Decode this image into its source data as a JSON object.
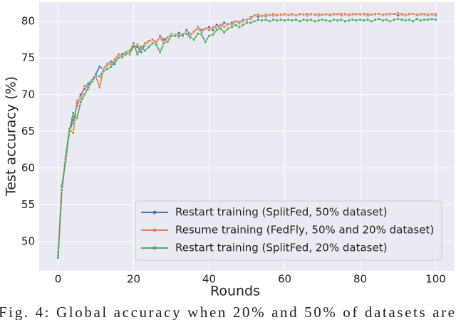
{
  "chart_data": {
    "type": "line",
    "xlabel": "Rounds",
    "ylabel": "Test accuracy (%)",
    "caption": "Fig. 4: Global accuracy when 20% and 50% of datasets are",
    "x": [
      0,
      1,
      2,
      3,
      4,
      5,
      6,
      7,
      8,
      9,
      10,
      11,
      12,
      13,
      14,
      15,
      16,
      17,
      18,
      19,
      20,
      21,
      22,
      23,
      24,
      25,
      26,
      27,
      28,
      29,
      30,
      31,
      32,
      33,
      34,
      35,
      36,
      37,
      38,
      39,
      40,
      41,
      42,
      43,
      44,
      45,
      46,
      47,
      48,
      49,
      50,
      51,
      52,
      53,
      54,
      55,
      56,
      57,
      58,
      59,
      60,
      61,
      62,
      63,
      64,
      65,
      66,
      67,
      68,
      69,
      70,
      71,
      72,
      73,
      74,
      75,
      76,
      77,
      78,
      79,
      80,
      81,
      82,
      83,
      84,
      85,
      86,
      87,
      88,
      89,
      90,
      91,
      92,
      93,
      94,
      95,
      96,
      97,
      98,
      99,
      100
    ],
    "series": [
      {
        "name": "Restart training (SplitFed, 50% dataset)",
        "color": "#4c72b0",
        "values": [
          48,
          57.5,
          61,
          65,
          66.5,
          68.5,
          70,
          70.8,
          71.5,
          72,
          72.8,
          73.8,
          73.5,
          74.2,
          74.5,
          74.2,
          75.2,
          75.5,
          75.8,
          76,
          76.5,
          76.5,
          75.8,
          76.8,
          77.2,
          77.5,
          77,
          78,
          77.5,
          77.8,
          78.2,
          78,
          78.4,
          78,
          78.8,
          78.2,
          78.5,
          79.2,
          78.8,
          79,
          79.2,
          78.8,
          79.5,
          79.2,
          79.8,
          79.5,
          79.8,
          80,
          79.9,
          80.2,
          80.2,
          80.5,
          80.8,
          80.6,
          80.8,
          80.7,
          80.9,
          80.8,
          80.9,
          80.8,
          80.9,
          80.8,
          80.9,
          80.8,
          80.9,
          81,
          80.8,
          80.9,
          80.9,
          80.8,
          80.9,
          80.9,
          80.8,
          80.9,
          80.9,
          81,
          80.9,
          80.8,
          80.9,
          80.9,
          81,
          80.9,
          80.8,
          80.9,
          80.9,
          81,
          80.8,
          80.9,
          80.9,
          81,
          80.8,
          80.9,
          80.8,
          80.9,
          81,
          80.8,
          80.9,
          80.9,
          80.8,
          80.9,
          80.8
        ]
      },
      {
        "name": "Resume training (FedFly, 50% and 20% dataset)",
        "color": "#dd8452",
        "values": [
          48.5,
          57,
          61.5,
          65.3,
          64.8,
          69.2,
          69.5,
          71.2,
          70.8,
          72,
          72.5,
          71,
          73.5,
          74,
          74.2,
          74.8,
          75.5,
          75,
          75.8,
          75.5,
          76.5,
          76.8,
          76.2,
          77,
          77.3,
          77.5,
          77.2,
          77.8,
          77,
          77.8,
          78,
          78.2,
          77.8,
          78.3,
          78.5,
          78,
          78.6,
          79,
          78.5,
          79,
          78.8,
          79.2,
          79,
          79.5,
          79.2,
          79.6,
          79.5,
          80,
          79.7,
          80,
          80.2,
          80.3,
          80.8,
          80.9,
          80.7,
          80.9,
          80.8,
          81,
          80.8,
          80.9,
          81,
          80.9,
          81,
          80.8,
          81,
          80.9,
          81,
          81,
          80.9,
          81,
          80.9,
          81,
          80.9,
          81,
          81,
          80.8,
          81,
          80.9,
          81,
          81,
          80.9,
          81,
          81,
          80.9,
          81,
          81,
          80.9,
          81,
          81,
          81,
          81.1,
          81,
          80.9,
          81,
          81,
          80.9,
          81,
          81,
          80.9,
          81,
          81
        ]
      },
      {
        "name": "Restart training (SplitFed, 20% dataset)",
        "color": "#55a868",
        "values": [
          47.8,
          57,
          61.2,
          65,
          67.5,
          66.8,
          69,
          70,
          71,
          71.8,
          72.5,
          72.5,
          73.2,
          73.5,
          73.8,
          74.5,
          75,
          75.2,
          75.5,
          75.8,
          77,
          75.5,
          76.5,
          76,
          76.5,
          77,
          76.8,
          75.8,
          77,
          77.2,
          78,
          78,
          78,
          78.2,
          78.3,
          77.8,
          77.5,
          78.3,
          78.2,
          77.2,
          78,
          78.2,
          78.8,
          79,
          78.5,
          79,
          79.2,
          79.5,
          79.2,
          79.5,
          79.8,
          79.8,
          80,
          80.2,
          80.1,
          80.2,
          80,
          80.2,
          80.1,
          80.2,
          80.1,
          80.2,
          80.1,
          80.2,
          80,
          80.2,
          80.1,
          80.2,
          80,
          80.1,
          80.2,
          80.1,
          80,
          80.2,
          80.1,
          80.2,
          80,
          80.1,
          80.2,
          80.1,
          80.2,
          80.1,
          80.2,
          80,
          80.2,
          80.3,
          80.1,
          80.2,
          80,
          80.2,
          80.3,
          80.2,
          80.1,
          80.2,
          80,
          80.3,
          80.1,
          80.2,
          80.2,
          80.3,
          80.2
        ]
      }
    ],
    "xlim": [
      -5,
      105
    ],
    "ylim": [
      46,
      82.6
    ],
    "xticks": [
      0,
      20,
      40,
      60,
      80,
      100
    ],
    "yticks": [
      50,
      55,
      60,
      65,
      70,
      75,
      80
    ],
    "grid": true,
    "legend": "lower right"
  }
}
